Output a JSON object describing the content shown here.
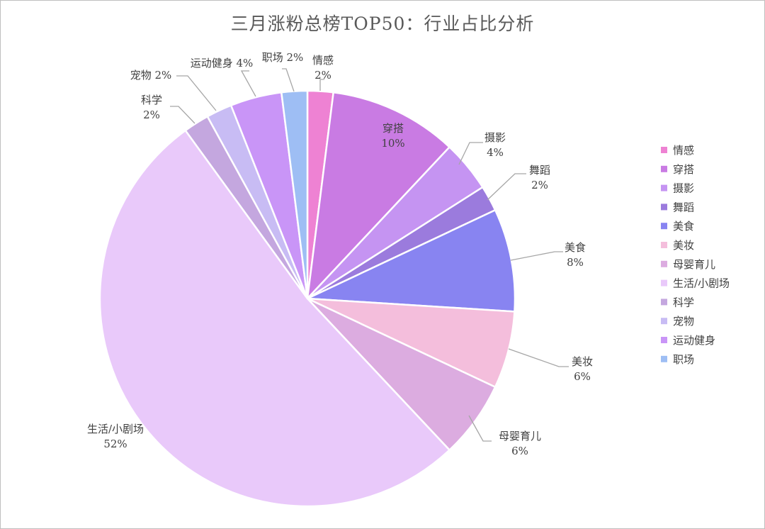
{
  "chart_data": {
    "type": "pie",
    "title": "三月涨粉总榜TOP50：行业占比分析",
    "slices": [
      {
        "label": "情感",
        "value": 2,
        "value_label": "2%",
        "color": "#EE82D3"
      },
      {
        "label": "穿搭",
        "value": 10,
        "value_label": "10%",
        "color": "#C97BE3"
      },
      {
        "label": "摄影",
        "value": 4,
        "value_label": "4%",
        "color": "#C594F2"
      },
      {
        "label": "舞蹈",
        "value": 2,
        "value_label": "2%",
        "color": "#9B7BDD"
      },
      {
        "label": "美食",
        "value": 8,
        "value_label": "8%",
        "color": "#8884F1"
      },
      {
        "label": "美妆",
        "value": 6,
        "value_label": "6%",
        "color": "#F4BEDC"
      },
      {
        "label": "母婴育儿",
        "value": 6,
        "value_label": "6%",
        "color": "#DCACE0"
      },
      {
        "label": "生活/小剧场",
        "value": 52,
        "value_label": "52%",
        "color": "#E9C9FA"
      },
      {
        "label": "科学",
        "value": 2,
        "value_label": "2%",
        "color": "#C4A7DF"
      },
      {
        "label": "宠物",
        "value": 2,
        "value_label": "2%",
        "color": "#C8BCF4"
      },
      {
        "label": "运动健身",
        "value": 4,
        "value_label": "4%",
        "color": "#C995F7"
      },
      {
        "label": "职场",
        "value": 2,
        "value_label": "2%",
        "color": "#9EBEF4"
      }
    ],
    "legend_position": "right"
  }
}
